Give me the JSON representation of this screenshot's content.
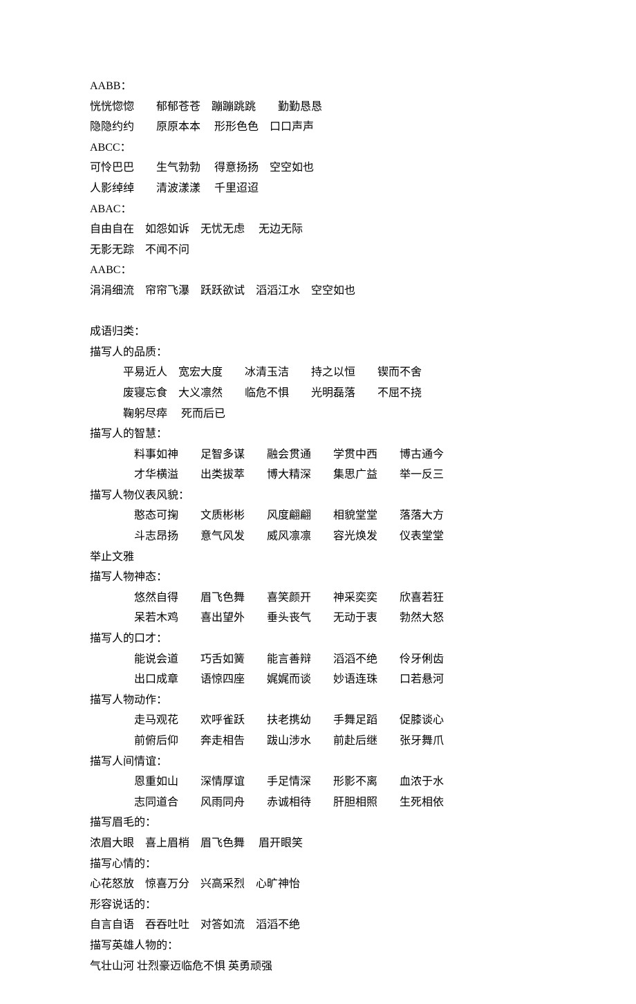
{
  "pattern_sections": [
    {
      "title": "AABB：",
      "lines": [
        "恍恍惚惚　　郁郁苍苍　蹦蹦跳跳　　勤勤恳恳",
        "隐隐约约　　原原本本　 形形色色　口口声声"
      ]
    },
    {
      "title": "ABCC：",
      "lines": [
        "可怜巴巴　　生气勃勃　 得意扬扬　空空如也",
        "人影绰绰　　清波漾漾　 千里迢迢"
      ]
    },
    {
      "title": "ABAC：",
      "lines": [
        "自由自在　如怨如诉　无忧无虑　 无边无际",
        "无影无踪　不闻不问"
      ]
    },
    {
      "title": "AABC：",
      "lines": [
        "涓涓细流　帘帘飞瀑　跃跃欲试　滔滔江水　空空如也"
      ]
    }
  ],
  "main_heading": "成语归类：",
  "categories": [
    {
      "title": "描写人的品质：",
      "indent": "indent1",
      "rows": [
        "平易近人　宽宏大度　　冰清玉洁　　持之以恒　　锲而不舍",
        "废寝忘食　大义凛然　　临危不惧　　光明磊落　　不屈不挠",
        "鞠躬尽瘁　 死而后已"
      ]
    },
    {
      "title": "描写人的智慧：",
      "indent": "indent2",
      "rows": [
        "料事如神　　足智多谋　　融会贯通　　学贯中西　　博古通今",
        "才华横溢　　出类拔萃　　博大精深　　集思广益　　举一反三"
      ]
    },
    {
      "title": "描写人物仪表风貌：",
      "indent": "indent2",
      "rows": [
        "憨态可掬　　文质彬彬　　风度翩翩　　相貌堂堂　　落落大方",
        "斗志昂扬　　意气风发　　威风凛凛　　容光焕发　　仪表堂堂"
      ],
      "trailer": "举止文雅"
    },
    {
      "title": "描写人物神态：",
      "indent": "indent2",
      "rows": [
        "悠然自得　　眉飞色舞　　喜笑颜开　　神采奕奕　　欣喜若狂",
        "呆若木鸡　　喜出望外　　垂头丧气　　无动于衷　　勃然大怒"
      ]
    },
    {
      "title": "描写人的口才：",
      "indent": "indent2",
      "rows": [
        "能说会道　　巧舌如簧　　能言善辩　　滔滔不绝　　伶牙俐齿",
        "出口成章　　语惊四座　　娓娓而谈　　妙语连珠　　口若悬河"
      ]
    },
    {
      "title": "描写人物动作：",
      "indent": "indent2",
      "rows": [
        "走马观花　　欢呼雀跃　　扶老携幼　　手舞足蹈　　促膝谈心",
        "前俯后仰　　奔走相告　　跋山涉水　　前赴后继　　张牙舞爪"
      ]
    },
    {
      "title": "描写人间情谊：",
      "indent": "indent2",
      "rows": [
        "恩重如山　　深情厚谊　　手足情深　　形影不离　　血浓于水",
        "志同道合　　风雨同舟　　赤诚相待　　肝胆相照　　生死相依"
      ]
    }
  ],
  "simple_categories": [
    {
      "title": "描写眉毛的：",
      "line": "浓眉大眼　喜上眉梢　眉飞色舞　 眉开眼笑"
    },
    {
      "title": "描写心情的：",
      "line": "心花怒放　惊喜万分　兴高采烈　心旷神怡"
    },
    {
      "title": "形容说话的：",
      "line": "自言自语　吞吞吐吐　对答如流　滔滔不绝"
    },
    {
      "title": "描写英雄人物的：",
      "line": "气壮山河 壮烈豪迈临危不惧 英勇顽强"
    }
  ]
}
